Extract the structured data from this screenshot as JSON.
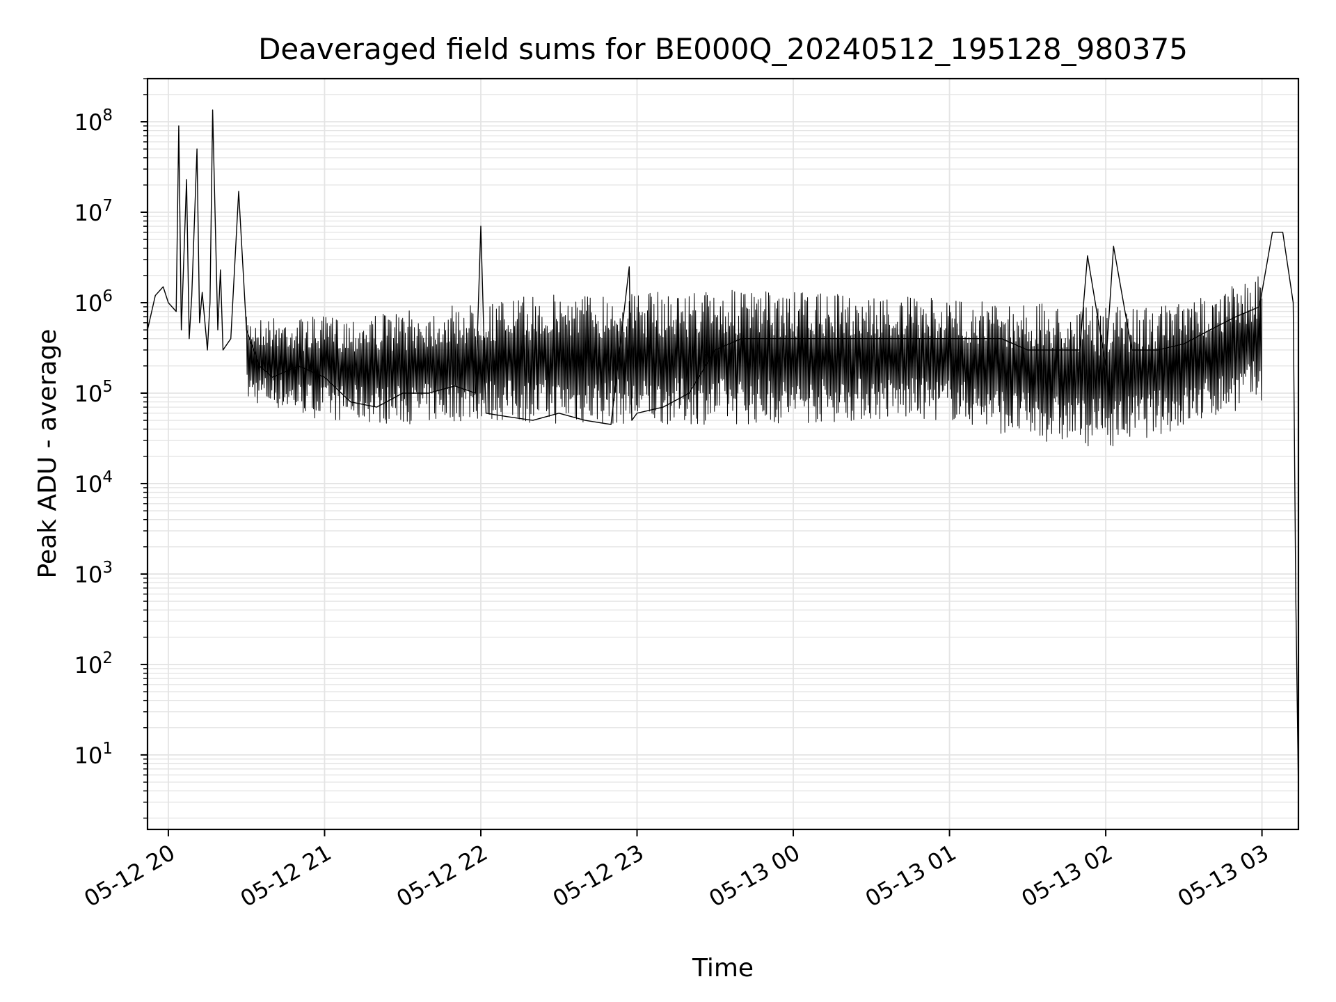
{
  "chart_data": {
    "type": "line",
    "title": "Deaveraged field sums for BE000Q_20240512_195128_980375",
    "xlabel": "Time",
    "ylabel": "Peak ADU - average",
    "yscale": "log",
    "ylim": [
      1.5,
      300000000
    ],
    "xlim": [
      "2024-05-12T19:52",
      "2024-05-13T03:14"
    ],
    "x_tick_labels": [
      "05-12 20",
      "05-12 21",
      "05-12 22",
      "05-12 23",
      "05-13 00",
      "05-13 01",
      "05-13 02",
      "05-13 03"
    ],
    "x_ticks": [
      "2024-05-12T20:00",
      "2024-05-12T21:00",
      "2024-05-12T22:00",
      "2024-05-12T23:00",
      "2024-05-13T00:00",
      "2024-05-13T01:00",
      "2024-05-13T02:00",
      "2024-05-13T03:00"
    ],
    "y_tick_exponents": [
      "1",
      "2",
      "3",
      "4",
      "5",
      "6",
      "7",
      "8"
    ],
    "grid": true,
    "series": [
      {
        "color": "#000000",
        "x": [
          "2024-05-12T19:52",
          "2024-05-12T19:55",
          "2024-05-12T19:58",
          "2024-05-12T20:00",
          "2024-05-12T20:03",
          "2024-05-12T20:04",
          "2024-05-12T20:05",
          "2024-05-12T20:07",
          "2024-05-12T20:08",
          "2024-05-12T20:09",
          "2024-05-12T20:11",
          "2024-05-12T20:12",
          "2024-05-12T20:13",
          "2024-05-12T20:15",
          "2024-05-12T20:16",
          "2024-05-12T20:17",
          "2024-05-12T20:19",
          "2024-05-12T20:20",
          "2024-05-12T20:21",
          "2024-05-12T20:24",
          "2024-05-12T20:27",
          "2024-05-12T20:30",
          "2024-05-12T20:35",
          "2024-05-12T20:40",
          "2024-05-12T20:50",
          "2024-05-12T21:00",
          "2024-05-12T21:10",
          "2024-05-12T21:20",
          "2024-05-12T21:30",
          "2024-05-12T21:40",
          "2024-05-12T21:50",
          "2024-05-12T21:58",
          "2024-05-12T22:00",
          "2024-05-12T22:02",
          "2024-05-12T22:10",
          "2024-05-12T22:20",
          "2024-05-12T22:30",
          "2024-05-12T22:40",
          "2024-05-12T22:50",
          "2024-05-12T22:57",
          "2024-05-12T22:58",
          "2024-05-12T23:00",
          "2024-05-12T23:10",
          "2024-05-12T23:20",
          "2024-05-12T23:30",
          "2024-05-12T23:40",
          "2024-05-12T23:50",
          "2024-05-13T00:00",
          "2024-05-13T00:10",
          "2024-05-13T00:20",
          "2024-05-13T00:30",
          "2024-05-13T00:40",
          "2024-05-13T00:50",
          "2024-05-13T01:00",
          "2024-05-13T01:10",
          "2024-05-13T01:20",
          "2024-05-13T01:30",
          "2024-05-13T01:40",
          "2024-05-13T01:50",
          "2024-05-13T01:53",
          "2024-05-13T02:00",
          "2024-05-13T02:03",
          "2024-05-13T02:10",
          "2024-05-13T02:20",
          "2024-05-13T02:30",
          "2024-05-13T02:40",
          "2024-05-13T02:50",
          "2024-05-13T02:59",
          "2024-05-13T03:04",
          "2024-05-13T03:08",
          "2024-05-13T03:12",
          "2024-05-13T03:13",
          "2024-05-13T03:14"
        ],
        "y": [
          500000,
          1200000,
          1500000,
          1000000,
          800000,
          90000000,
          500000,
          23000000,
          400000,
          1200000,
          50000000,
          600000,
          1300000,
          300000,
          1000000,
          135000000,
          500000,
          2300000,
          300000,
          400000,
          17000000,
          500000,
          200000,
          150000,
          200000,
          150000,
          80000,
          70000,
          100000,
          100000,
          120000,
          100000,
          7000000,
          60000,
          55000,
          50000,
          60000,
          50000,
          45000,
          2500000,
          50000,
          60000,
          70000,
          100000,
          300000,
          400000,
          400000,
          400000,
          400000,
          400000,
          400000,
          400000,
          400000,
          400000,
          400000,
          400000,
          300000,
          300000,
          300000,
          3300000,
          200000,
          4200000,
          300000,
          300000,
          350000,
          500000,
          700000,
          900000,
          6000000,
          6000000,
          1000000,
          500,
          4
        ]
      }
    ],
    "envelope": {
      "x": [
        "2024-05-12T20:30",
        "2024-05-12T21:00",
        "2024-05-12T21:30",
        "2024-05-12T22:00",
        "2024-05-12T22:30",
        "2024-05-12T23:00",
        "2024-05-12T23:30",
        "2024-05-13T00:00",
        "2024-05-13T00:30",
        "2024-05-13T01:00",
        "2024-05-13T01:30",
        "2024-05-13T02:00",
        "2024-05-13T02:30",
        "2024-05-13T03:00"
      ],
      "upper": [
        700000,
        700000,
        800000,
        1000000,
        1300000,
        1300000,
        1400000,
        1300000,
        1200000,
        1100000,
        1000000,
        900000,
        1000000,
        2000000
      ],
      "lower": [
        80000,
        50000,
        45000,
        50000,
        45000,
        45000,
        45000,
        45000,
        50000,
        50000,
        30000,
        25000,
        40000,
        80000
      ]
    }
  }
}
